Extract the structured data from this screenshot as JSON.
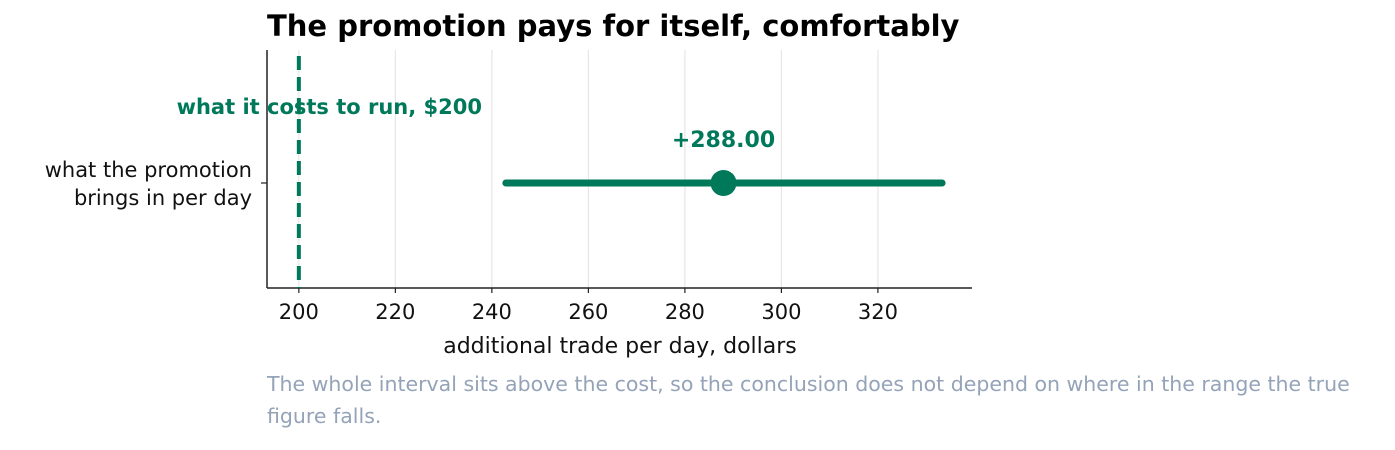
{
  "chart_data": {
    "type": "interval",
    "title": "The promotion pays for itself, comfortably",
    "categories": [
      "what the promotion brings in per day"
    ],
    "values": [
      288
    ],
    "value_labels": [
      "+288.00"
    ],
    "lower": [
      242.9
    ],
    "upper": [
      333.3
    ],
    "color": "#00785a",
    "reference": {
      "value": 200,
      "label": "what it costs to run, $200"
    },
    "xlabel": "additional trade per day, dollars",
    "xlim": [
      193.4,
      339.5
    ],
    "xticks": [
      200,
      220,
      240,
      260,
      280,
      300,
      320
    ],
    "grid": true,
    "note": "The whole interval sits above the cost, so the conclusion does not depend on where in the range the true figure falls."
  }
}
